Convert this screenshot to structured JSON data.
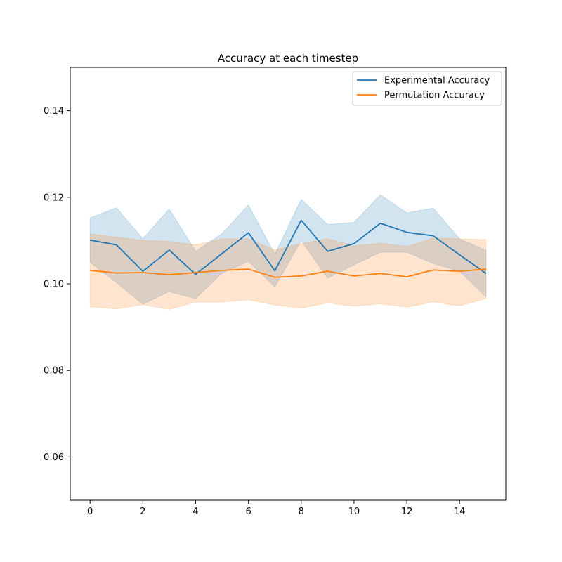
{
  "chart_data": {
    "type": "line",
    "title": "Accuracy at each timestep",
    "xlabel": "",
    "ylabel": "",
    "xlim": [
      -0.75,
      15.75
    ],
    "ylim": [
      0.05,
      0.15
    ],
    "x_ticks": [
      0,
      2,
      4,
      6,
      8,
      10,
      12,
      14
    ],
    "x_tick_labels": [
      "0",
      "2",
      "4",
      "6",
      "8",
      "10",
      "12",
      "14"
    ],
    "y_ticks": [
      0.06,
      0.08,
      0.1,
      0.12,
      0.14
    ],
    "y_tick_labels": [
      "0.06",
      "0.08",
      "0.10",
      "0.12",
      "0.14"
    ],
    "grid": false,
    "legend_position": "top-right",
    "x": [
      0,
      1,
      2,
      3,
      4,
      5,
      6,
      7,
      8,
      9,
      10,
      11,
      12,
      13,
      14,
      15
    ],
    "series": [
      {
        "name": "Experimental Accuracy",
        "color": "#1f77b4",
        "values": [
          0.1101,
          0.109,
          0.1029,
          0.1078,
          0.1022,
          0.107,
          0.1118,
          0.103,
          0.1147,
          0.1075,
          0.1093,
          0.114,
          0.1119,
          0.1111,
          0.1067,
          0.1024
        ],
        "band_upper": [
          0.1152,
          0.1176,
          0.1104,
          0.1173,
          0.1075,
          0.1116,
          0.1182,
          0.1068,
          0.1195,
          0.1137,
          0.1142,
          0.1206,
          0.1164,
          0.1175,
          0.1104,
          0.1077
        ],
        "band_lower": [
          0.105,
          0.1003,
          0.0953,
          0.0982,
          0.0966,
          0.1025,
          0.1052,
          0.0993,
          0.11,
          0.1013,
          0.1044,
          0.1073,
          0.1073,
          0.1047,
          0.1029,
          0.097
        ]
      },
      {
        "name": "Permutation Accuracy",
        "color": "#ff7f0e",
        "values": [
          0.1031,
          0.1025,
          0.1026,
          0.1021,
          0.1026,
          0.1031,
          0.1034,
          0.1015,
          0.1018,
          0.1029,
          0.1018,
          0.1024,
          0.1016,
          0.1032,
          0.1029,
          0.1034
        ],
        "band_upper": [
          0.1115,
          0.1108,
          0.11,
          0.1098,
          0.109,
          0.1104,
          0.1104,
          0.1078,
          0.1093,
          0.1104,
          0.1088,
          0.1094,
          0.1086,
          0.1106,
          0.1104,
          0.1102
        ],
        "band_lower": [
          0.0947,
          0.0942,
          0.0952,
          0.0941,
          0.0958,
          0.0958,
          0.0963,
          0.0951,
          0.0944,
          0.0956,
          0.0948,
          0.0954,
          0.0946,
          0.0958,
          0.0949,
          0.0966
        ]
      }
    ]
  }
}
